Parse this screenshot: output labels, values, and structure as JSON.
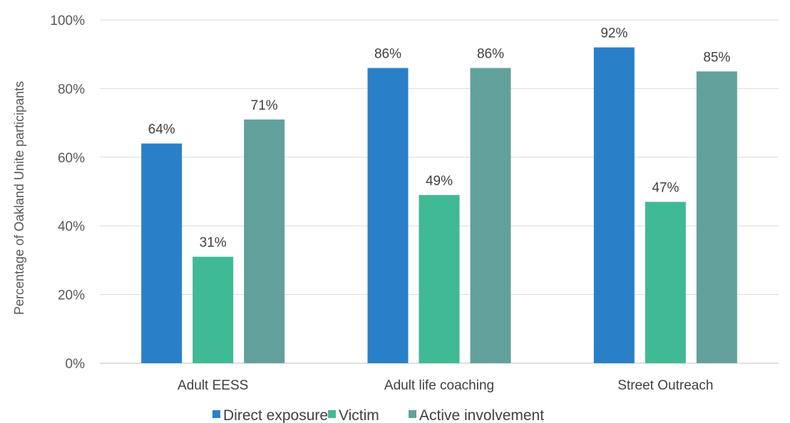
{
  "chart_data": {
    "type": "bar",
    "title": "",
    "xlabel": "",
    "ylabel": "Percentage of Oakland Unite participants",
    "ylim": [
      0,
      100
    ],
    "yticks": [
      "0%",
      "20%",
      "40%",
      "60%",
      "80%",
      "100%"
    ],
    "ytick_values": [
      0,
      20,
      40,
      60,
      80,
      100
    ],
    "grid": true,
    "legend_position": "bottom",
    "categories": [
      "Adult EESS",
      "Adult life coaching",
      "Street Outreach"
    ],
    "series": [
      {
        "name": "Direct exposure",
        "color": "#2980C8",
        "values": [
          64,
          86,
          92
        ],
        "labels": [
          "64%",
          "86%",
          "92%"
        ]
      },
      {
        "name": "Victim",
        "color": "#40B995",
        "values": [
          31,
          49,
          47
        ],
        "labels": [
          "31%",
          "49%",
          "47%"
        ]
      },
      {
        "name": "Active involvement",
        "color": "#62A19B",
        "values": [
          71,
          86,
          85
        ],
        "labels": [
          "71%",
          "86%",
          "85%"
        ]
      }
    ]
  }
}
